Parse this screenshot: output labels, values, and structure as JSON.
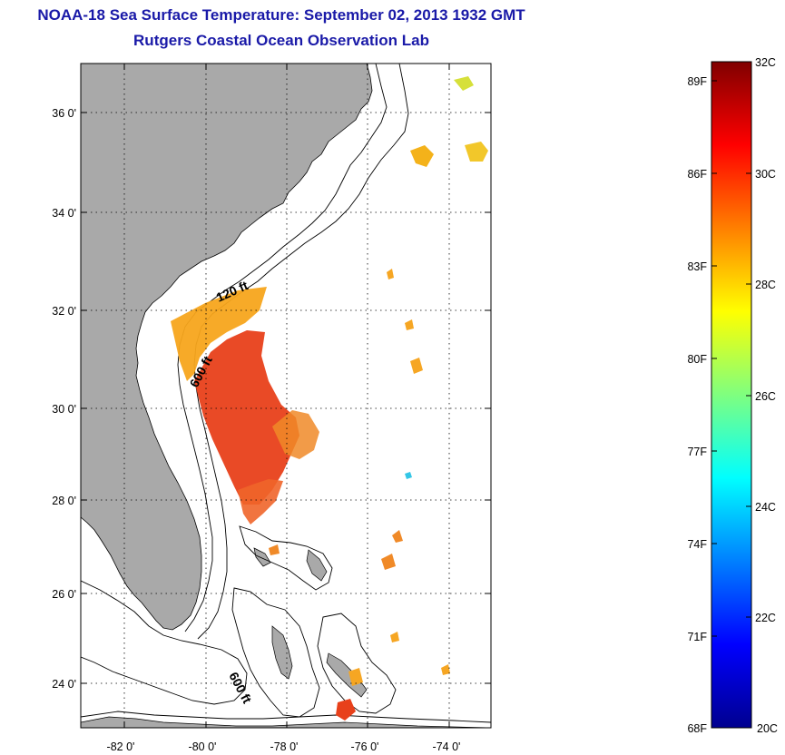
{
  "title": {
    "line1": "NOAA-18 Sea Surface Temperature:  September 02, 2013 1932 GMT",
    "line2": "Rutgers Coastal Ocean Observation Lab"
  },
  "map": {
    "lat_labels": [
      "36 0'",
      "34 0'",
      "32 0'",
      "30 0'",
      "28 0'",
      "26 0'",
      "24 0'"
    ],
    "lon_labels": [
      "-82 0'",
      "-80 0'",
      "-78 0'",
      "-76 0'",
      "-74 0'"
    ],
    "contour_labels": [
      "120 ft",
      "600 ft",
      "600 ft"
    ],
    "land_color": "#a9a9a9"
  },
  "colorbar": {
    "fahrenheit_labels": [
      "89F",
      "86F",
      "83F",
      "80F",
      "77F",
      "74F",
      "71F",
      "68F"
    ],
    "celsius_labels": [
      "32C",
      "30C",
      "28C",
      "26C",
      "24C",
      "22C",
      "20C"
    ],
    "range_c": [
      20,
      32
    ],
    "colormap": "jet"
  }
}
